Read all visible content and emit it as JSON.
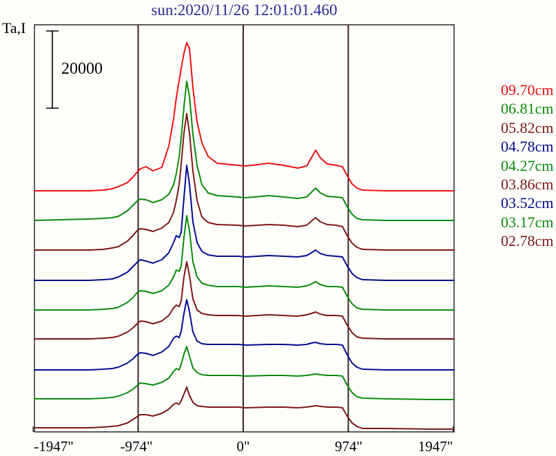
{
  "title": "sun:2020/11/26 12:01:01.460",
  "y_axis_label": "Ta,I",
  "scale_bar": {
    "label": "20000",
    "value": 20000
  },
  "x_axis": {
    "tick_labels": [
      "-1947\"",
      "-974\"",
      "0\"",
      "974\"",
      "1947\""
    ],
    "tick_arcsec": [
      -1947,
      -974,
      0,
      974,
      1947
    ]
  },
  "colors": {
    "title": "#2b2b97",
    "red": "#ee1111",
    "green": "#0a8a0a",
    "dark_red": "#7c1616",
    "blue": "#000c90",
    "grid_line": "#3a2323",
    "frame": "#1a1a1a",
    "text": "#000000",
    "background": "#fffffb"
  },
  "chart_data": {
    "type": "line",
    "title": "sun:2020/11/26 12:01:01.460",
    "xlabel_unit": "arcsec",
    "ylabel": "Ta,I",
    "x_range_arcsec": [
      -1935,
      1954
    ],
    "vertical_lines_arcsec": [
      -974,
      0,
      974
    ],
    "scale_bar_ta": 20000,
    "legend_position": "right",
    "grid": false,
    "x_arcsec": [
      -1935,
      -1424,
      -1297,
      -1214,
      -1156,
      -1073,
      -1022,
      -984,
      -952,
      -901,
      -837,
      -754,
      -690,
      -645,
      -620,
      -594,
      -575,
      -549,
      -524,
      -498,
      -466,
      -428,
      -383,
      -326,
      -243,
      -51,
      26,
      236,
      377,
      505,
      588,
      632,
      671,
      715,
      779,
      862,
      920,
      964,
      1009,
      1054,
      1105,
      1322,
      1756,
      1954
    ],
    "series": [
      {
        "label": "09.70cm",
        "color_key": "red",
        "offset_ta": 62500,
        "ta": [
          0,
          0,
          180,
          540,
          1070,
          2140,
          3570,
          4820,
          5710,
          6250,
          5180,
          6070,
          11610,
          18750,
          24110,
          28570,
          31790,
          35710,
          38390,
          36960,
          26790,
          17860,
          12500,
          8930,
          7140,
          6610,
          6430,
          7140,
          6610,
          5890,
          6430,
          8570,
          10540,
          8570,
          6960,
          6610,
          6250,
          3930,
          1790,
          710,
          180,
          0,
          0,
          0
        ]
      },
      {
        "label": "06.81cm",
        "color_key": "green",
        "offset_ta": 54820,
        "ta": [
          0,
          360,
          540,
          710,
          1070,
          2500,
          3930,
          5000,
          5540,
          5360,
          4640,
          5360,
          6790,
          9290,
          12140,
          16430,
          21430,
          29460,
          36070,
          32140,
          22320,
          14290,
          9290,
          7140,
          6430,
          6070,
          5890,
          6430,
          6070,
          5710,
          6070,
          7320,
          8390,
          7140,
          6250,
          6070,
          5890,
          3570,
          1610,
          540,
          180,
          0,
          0,
          0
        ]
      },
      {
        "label": "05.82cm",
        "color_key": "dark_red",
        "offset_ta": 47140,
        "ta": [
          0,
          0,
          180,
          540,
          890,
          2320,
          3750,
          5000,
          5540,
          5360,
          4820,
          5710,
          7140,
          9820,
          12860,
          16960,
          22320,
          30360,
          35360,
          30360,
          20540,
          12860,
          8570,
          7140,
          6610,
          6430,
          6250,
          6610,
          6430,
          6070,
          6430,
          7500,
          8390,
          7320,
          6610,
          6430,
          6070,
          3750,
          1790,
          710,
          180,
          0,
          0,
          0
        ]
      },
      {
        "label": "04.78cm",
        "color_key": "blue",
        "offset_ta": 39290,
        "ta": [
          0,
          0,
          180,
          360,
          890,
          2140,
          3570,
          4640,
          5360,
          5000,
          4460,
          5360,
          7140,
          9820,
          11610,
          11070,
          12500,
          21430,
          29820,
          25000,
          15180,
          9820,
          7500,
          6610,
          6250,
          6250,
          6070,
          6430,
          6250,
          6070,
          6430,
          7140,
          7860,
          6960,
          6430,
          6250,
          6070,
          3750,
          1790,
          710,
          180,
          0,
          0,
          0
        ]
      },
      {
        "label": "04.27cm",
        "color_key": "green",
        "offset_ta": 31610,
        "ta": [
          0,
          0,
          180,
          360,
          710,
          1960,
          3210,
          4460,
          5000,
          4820,
          4290,
          5000,
          6430,
          8570,
          10360,
          10000,
          11430,
          18750,
          24460,
          20540,
          12500,
          8570,
          6960,
          6430,
          6070,
          6070,
          5890,
          6250,
          6070,
          5890,
          6250,
          6790,
          7320,
          6610,
          6070,
          6070,
          5890,
          3570,
          1610,
          540,
          180,
          0,
          0,
          0
        ]
      },
      {
        "label": "03.86cm",
        "color_key": "dark_red",
        "offset_ta": 24110,
        "ta": [
          0,
          0,
          180,
          360,
          710,
          1790,
          2860,
          3930,
          4640,
          4460,
          3930,
          4640,
          6070,
          8040,
          8750,
          8390,
          9820,
          16070,
          20000,
          16430,
          10360,
          7500,
          6610,
          6250,
          6070,
          6070,
          5890,
          6250,
          6070,
          5890,
          6250,
          6610,
          6960,
          6430,
          6070,
          6070,
          5890,
          3570,
          1610,
          540,
          180,
          0,
          0,
          0
        ]
      },
      {
        "label": "03.52cm",
        "color_key": "blue",
        "offset_ta": 16070,
        "ta": [
          0,
          0,
          180,
          360,
          710,
          1790,
          2860,
          3930,
          4460,
          4290,
          3750,
          4640,
          6070,
          8210,
          8750,
          8390,
          10000,
          14640,
          18210,
          15180,
          9820,
          7500,
          6790,
          6610,
          6610,
          6610,
          6430,
          6610,
          6610,
          6430,
          6610,
          6960,
          7140,
          6790,
          6610,
          6610,
          6430,
          3930,
          1790,
          710,
          180,
          0,
          0,
          0
        ]
      },
      {
        "label": "03.17cm",
        "color_key": "green",
        "offset_ta": 8570,
        "ta": [
          0,
          0,
          180,
          360,
          710,
          1610,
          2500,
          3390,
          4110,
          3930,
          3570,
          4290,
          5360,
          7140,
          7860,
          7500,
          8930,
          11610,
          13570,
          11070,
          8040,
          6790,
          6250,
          6070,
          6070,
          6070,
          5890,
          6070,
          6070,
          5890,
          6070,
          6250,
          6430,
          6250,
          6070,
          6070,
          5890,
          3570,
          1610,
          540,
          180,
          0,
          -180,
          -180
        ]
      },
      {
        "label": "02.78cm",
        "color_key": "dark_red",
        "offset_ta": 890,
        "ta": [
          180,
          180,
          360,
          540,
          710,
          1430,
          2320,
          3040,
          3570,
          3570,
          3210,
          3930,
          5000,
          6250,
          6610,
          6250,
          7140,
          8930,
          10710,
          8570,
          6790,
          5890,
          5710,
          5540,
          5540,
          5540,
          5360,
          5540,
          5540,
          5360,
          5540,
          5710,
          5890,
          5710,
          5540,
          5540,
          5360,
          3210,
          1430,
          540,
          0,
          0,
          -180,
          -180
        ]
      }
    ]
  }
}
